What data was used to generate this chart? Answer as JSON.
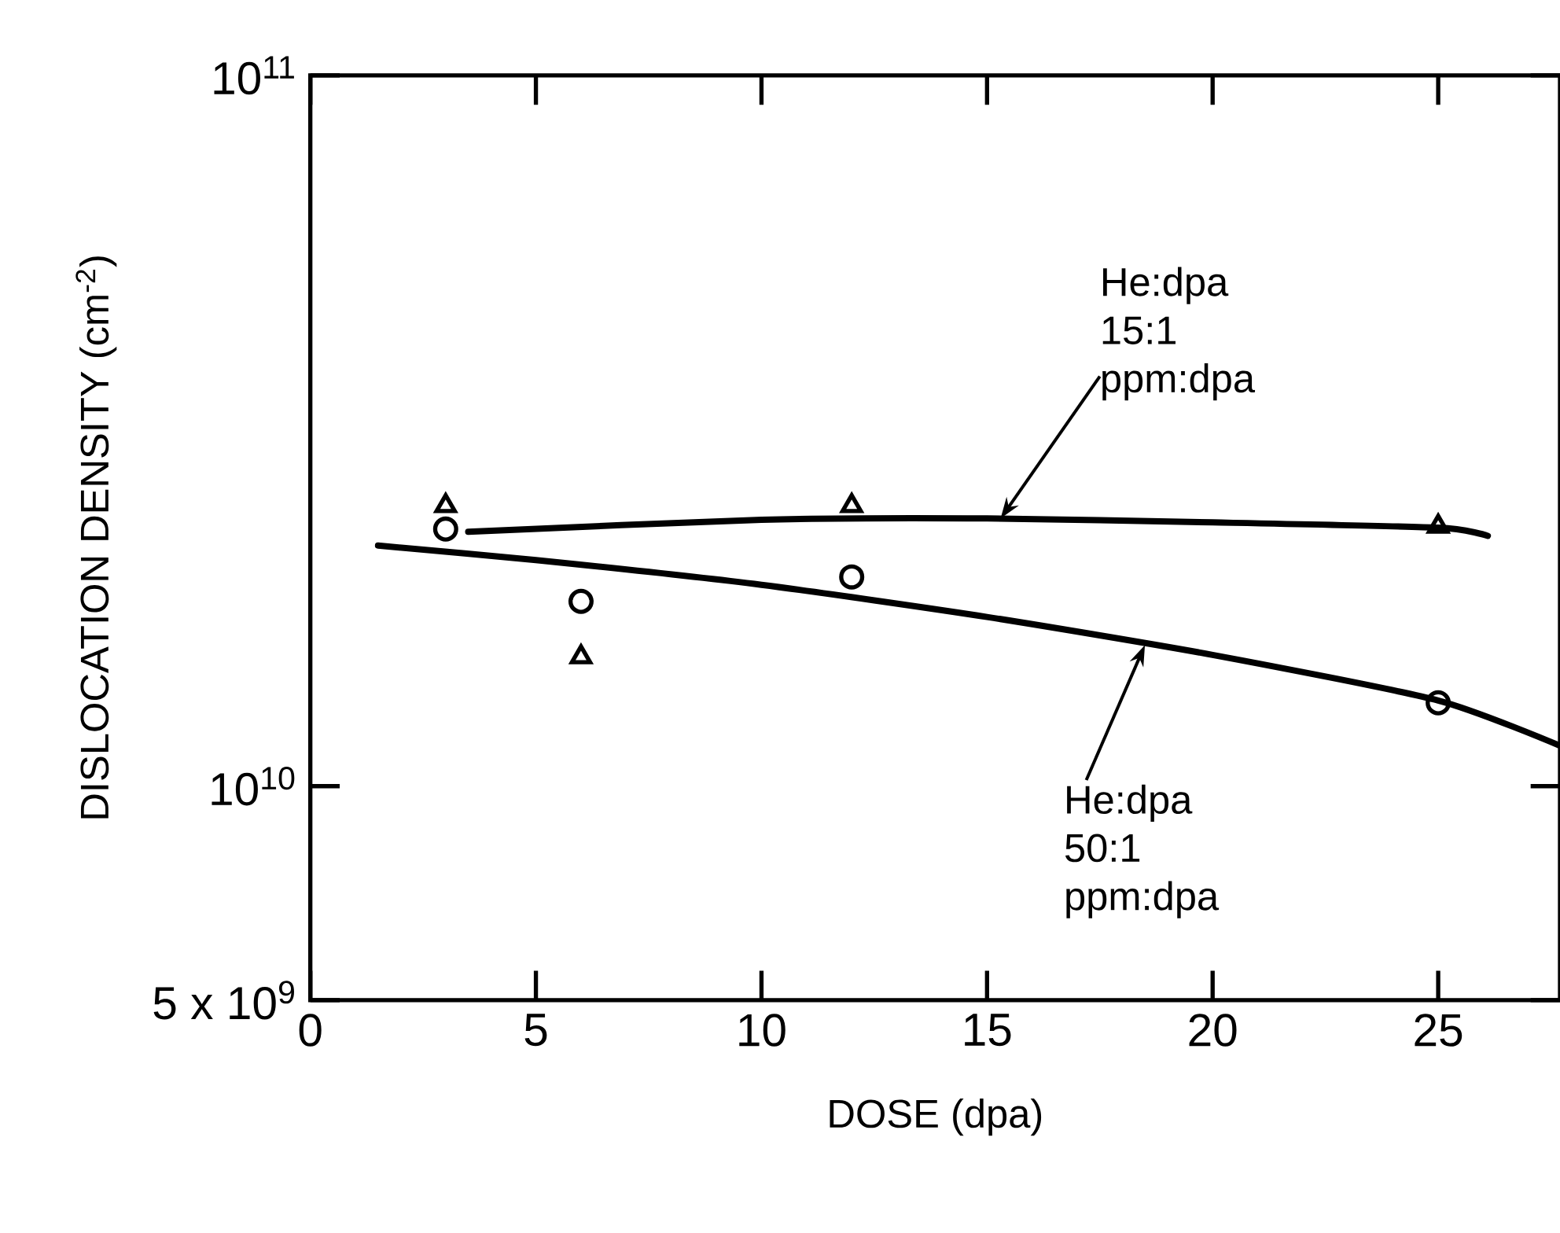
{
  "chart_data": {
    "type": "scatter",
    "xlabel": "DOSE (dpa)",
    "ylabel": "DISLOCATION DENSITY (cm$^{-2}$)",
    "log": "y",
    "xlim": [
      0,
      27.7
    ],
    "ylim": [
      5000000000.0,
      100000000000.0
    ],
    "xticks": [
      0,
      5,
      10,
      15,
      20,
      25
    ],
    "yticks": [
      {
        "value": 5000000000.0,
        "label": "5 x 10$^{9}$"
      },
      {
        "value": 10000000000.0,
        "label": "10$^{10}$"
      },
      {
        "value": 100000000000.0,
        "label": "10$^{11}$"
      }
    ],
    "grid": false,
    "series": [
      {
        "marker": "triangle",
        "color": "#000000",
        "x": [
          3,
          6,
          12,
          25
        ],
        "values": [
          24800000000.0,
          15200000000.0,
          24800000000.0,
          23200000000.0
        ]
      },
      {
        "marker": "circle",
        "color": "#000000",
        "x": [
          3,
          6,
          12,
          25
        ],
        "values": [
          23000000000.0,
          18200000000.0,
          19700000000.0,
          13100000000.0
        ]
      },
      {
        "type": "line",
        "marker": "none",
        "line_style": "solid",
        "color": "#000000",
        "x": [
          3.5,
          10,
          15,
          20,
          25,
          26.1
        ],
        "values": [
          22800000000.0,
          23700000000.0,
          23800000000.0,
          23500000000.0,
          23100000000.0,
          22500000000.0
        ]
      },
      {
        "type": "line",
        "marker": "none",
        "line_style": "solid",
        "color": "#000000",
        "x": [
          1.5,
          5,
          10,
          15,
          20,
          25,
          27.7
        ],
        "values": [
          21800000000.0,
          20800000000.0,
          19200000000.0,
          17300000000.0,
          15300000000.0,
          13200000000.0,
          11400000000.0
        ]
      }
    ],
    "annotations": [
      {
        "text": "He:dpa 15:1 ppm:dpa",
        "x": 15.3,
        "y": 23800000000.0
      },
      {
        "text": "He:dpa 50:1 ppm:dpa",
        "x": 18.5,
        "y": 15800000000.0
      }
    ]
  }
}
